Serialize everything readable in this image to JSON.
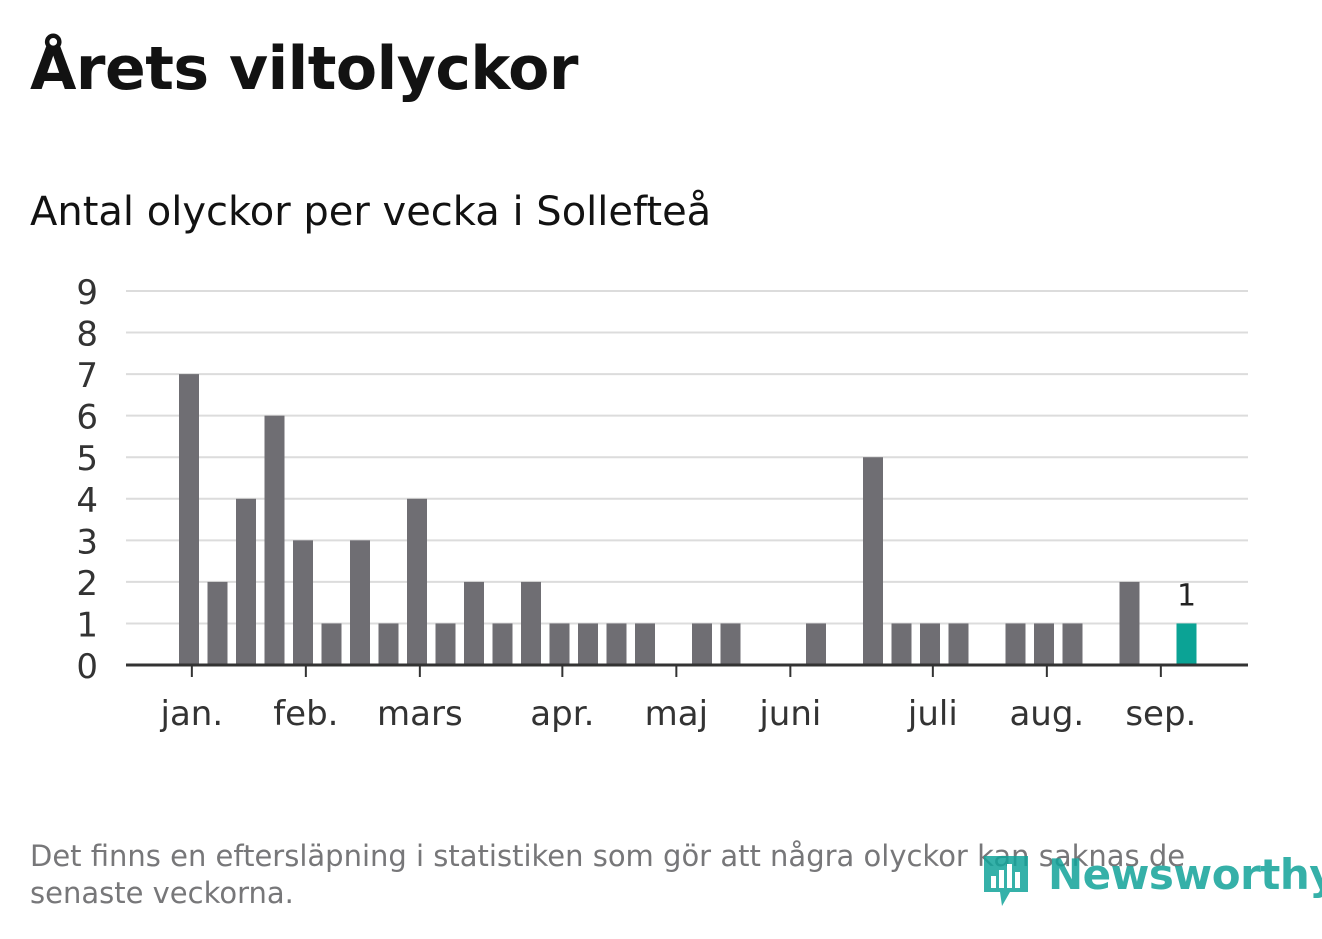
{
  "header": {
    "title": "Årets viltolyckor",
    "subtitle": "Antal olyckor per vecka i Sollefteå"
  },
  "footnote": "Det finns en eftersläpning i statistiken som gör att några olyckor kan saknas de senaste veckorna.",
  "logo": {
    "text": "Newsworthy",
    "icon": "bar-chart-speech-bubble-icon"
  },
  "colors": {
    "bar": "#6f6e73",
    "highlight": "#0ba395",
    "grid": "#dcdcdc",
    "axis": "#333333",
    "text": "#333333"
  },
  "chart_data": {
    "type": "bar",
    "title": "",
    "xlabel": "",
    "ylabel": "",
    "ylim": [
      0,
      9
    ],
    "yticks": [
      0,
      1,
      2,
      3,
      4,
      5,
      6,
      7,
      8,
      9
    ],
    "grid": true,
    "x_unit": "week number",
    "weeks": [
      1,
      2,
      3,
      4,
      5,
      6,
      7,
      8,
      9,
      10,
      11,
      12,
      13,
      14,
      15,
      16,
      17,
      18,
      19,
      20,
      21,
      22,
      23,
      24,
      25,
      26,
      27,
      28,
      29,
      30,
      31,
      32,
      33,
      34,
      35,
      36,
      37,
      38
    ],
    "values": [
      7,
      2,
      4,
      6,
      3,
      1,
      3,
      1,
      4,
      1,
      2,
      1,
      2,
      1,
      1,
      1,
      1,
      0,
      1,
      1,
      0,
      0,
      1,
      0,
      5,
      1,
      1,
      1,
      0,
      1,
      1,
      1,
      0,
      2,
      0,
      1,
      0,
      0
    ],
    "highlight_index": 35,
    "highlight_label": "1",
    "month_ticks": [
      {
        "label": "jan.",
        "week": 1.1
      },
      {
        "label": "feb.",
        "week": 5.1
      },
      {
        "label": "mars",
        "week": 9.1
      },
      {
        "label": "apr.",
        "week": 14.1
      },
      {
        "label": "maj",
        "week": 18.1
      },
      {
        "label": "juni",
        "week": 22.1
      },
      {
        "label": "juli",
        "week": 27.1
      },
      {
        "label": "aug.",
        "week": 31.1
      },
      {
        "label": "sep.",
        "week": 35.1
      }
    ]
  }
}
